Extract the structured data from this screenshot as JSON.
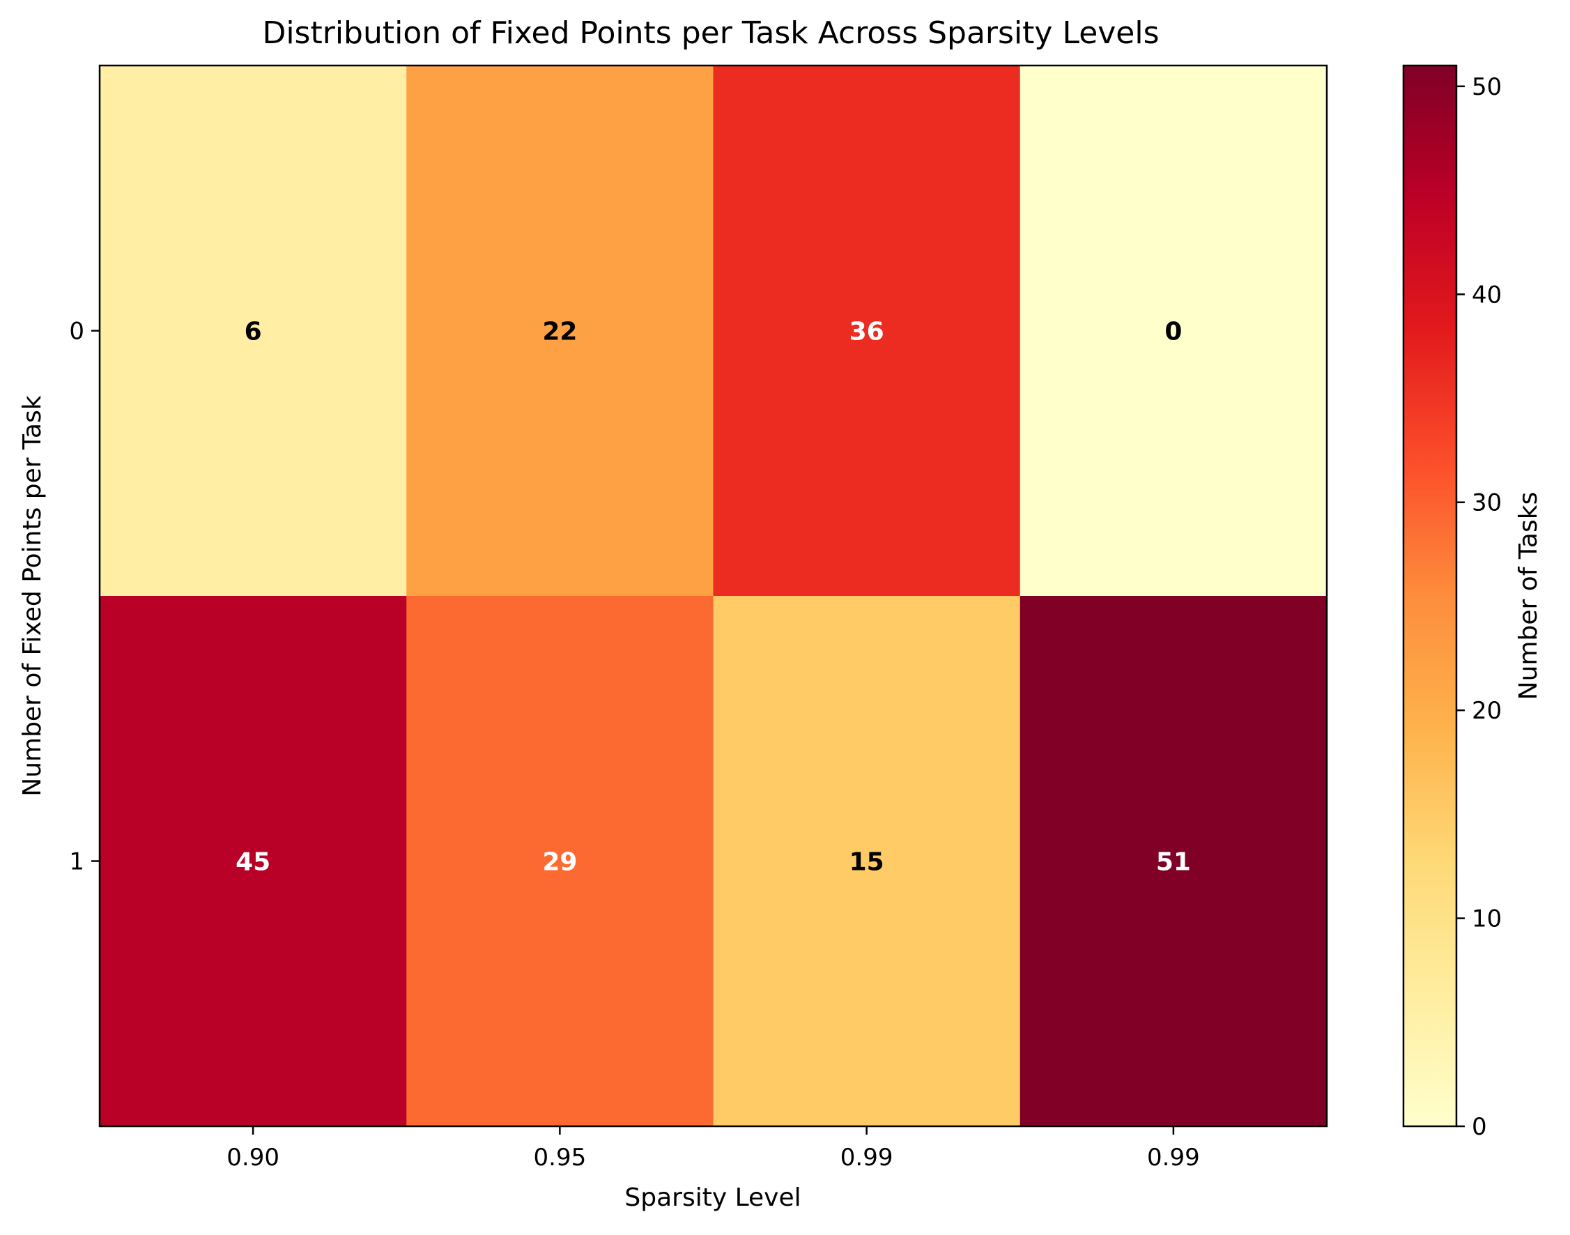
{
  "chart_data": {
    "type": "heatmap",
    "title": "Distribution of Fixed Points per Task Across Sparsity Levels",
    "xlabel": "Sparsity Level",
    "ylabel": "Number of Fixed Points per Task",
    "x_tick_labels": [
      "0.90",
      "0.95",
      "0.99",
      "0.99"
    ],
    "y_tick_labels": [
      "0",
      "1"
    ],
    "values": [
      [
        6,
        22,
        36,
        0
      ],
      [
        45,
        29,
        15,
        51
      ]
    ],
    "colormap": "YlOrRd",
    "value_range": [
      0,
      51
    ],
    "colorbar": {
      "label": "Number of Tasks",
      "ticks": [
        "0",
        "10",
        "20",
        "30",
        "40",
        "50"
      ],
      "tick_values": [
        0,
        10,
        20,
        30,
        40,
        50
      ]
    },
    "annotation_threshold": 25.5,
    "annotation_colors": {
      "dark": "#000000",
      "light": "#ffffff"
    },
    "colormap_stops": [
      "#ffffcc",
      "#ffeda0",
      "#fed976",
      "#feb24c",
      "#fd8d3c",
      "#fc4e2a",
      "#e31a1c",
      "#bd0026",
      "#800026"
    ]
  }
}
